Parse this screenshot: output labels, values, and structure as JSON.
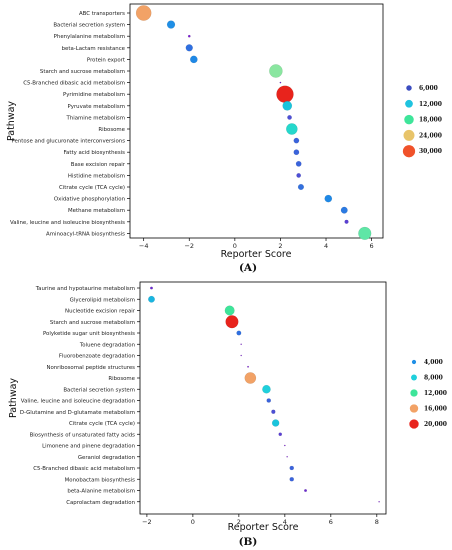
{
  "chart_data": [
    {
      "type": "scatter",
      "panel_label": "(A)",
      "xlabel": "Reporter Score",
      "ylabel": "Pathway",
      "xlim": [
        -4.6,
        6.5
      ],
      "xticks": [
        -4,
        -2,
        0,
        2,
        4,
        6
      ],
      "size_legend": {
        "values": [
          6000,
          12000,
          18000,
          24000,
          30000
        ],
        "labels": [
          "6,000",
          "12,000",
          "18,000",
          "24,000",
          "30,000"
        ],
        "colors": [
          "#3b4cc0",
          "#1fc3df",
          "#3ee59a",
          "#e8c46a",
          "#f0522a"
        ]
      },
      "points": [
        {
          "pathway": "ABC transporters",
          "x": -4.0,
          "size": 24000,
          "color": "#f2a266"
        },
        {
          "pathway": "Bacterial secretion system",
          "x": -2.8,
          "size": 6500,
          "color": "#1f8fe6"
        },
        {
          "pathway": "Phenylalanine metabolism",
          "x": -2.0,
          "size": 600,
          "color": "#7a1fcf"
        },
        {
          "pathway": "beta-Lactam resistance",
          "x": -2.0,
          "size": 5000,
          "color": "#2f6fe0"
        },
        {
          "pathway": "Protein export",
          "x": -1.8,
          "size": 5500,
          "color": "#1e88e6"
        },
        {
          "pathway": "Starch and sucrose metabolism",
          "x": 1.8,
          "size": 18000,
          "color": "#8ae6a0"
        },
        {
          "pathway": "C5-Branched dibasic acid metabolism",
          "x": 2.0,
          "size": 200,
          "color": "#6a2ad0"
        },
        {
          "pathway": "Pyrimidine metabolism",
          "x": 2.2,
          "size": 30000,
          "color": "#e8231c"
        },
        {
          "pathway": "Pyruvate metabolism",
          "x": 2.3,
          "size": 9000,
          "color": "#19c4dc"
        },
        {
          "pathway": "Thiamine metabolism",
          "x": 2.4,
          "size": 2000,
          "color": "#4d4fd6"
        },
        {
          "pathway": "Ribosome",
          "x": 2.5,
          "size": 13000,
          "color": "#25d8cc"
        },
        {
          "pathway": "Pentose and glucuronate interconversions",
          "x": 2.7,
          "size": 3000,
          "color": "#3a63dc"
        },
        {
          "pathway": "Fatty acid biosynthesis",
          "x": 2.7,
          "size": 3000,
          "color": "#3a63dc"
        },
        {
          "pathway": "Base excision repair",
          "x": 2.8,
          "size": 3000,
          "color": "#3a63dc"
        },
        {
          "pathway": "Histidine metabolism",
          "x": 2.8,
          "size": 2000,
          "color": "#4d4fd6"
        },
        {
          "pathway": "Citrate cycle (TCA cycle)",
          "x": 2.9,
          "size": 3500,
          "color": "#3370de"
        },
        {
          "pathway": "Oxidative phosphorylation",
          "x": 4.1,
          "size": 5500,
          "color": "#1e88e6"
        },
        {
          "pathway": "Methane metabolism",
          "x": 4.8,
          "size": 4500,
          "color": "#2b7ae2"
        },
        {
          "pathway": "Valine, leucine and isoleucine biosynthesis",
          "x": 4.9,
          "size": 1500,
          "color": "#5a3fd4"
        },
        {
          "pathway": "Aminoacyl-tRNA biosynthesis",
          "x": 5.7,
          "size": 17000,
          "color": "#5fe6a6"
        }
      ]
    },
    {
      "type": "scatter",
      "panel_label": "(B)",
      "xlabel": "Reporter Score",
      "ylabel": "Pathway",
      "xlim": [
        -2.3,
        8.4
      ],
      "xticks": [
        -2,
        0,
        2,
        4,
        6,
        8
      ],
      "size_legend": {
        "values": [
          4000,
          8000,
          12000,
          16000,
          20000
        ],
        "labels": [
          "4,000",
          "8,000",
          "12,000",
          "16,000",
          "20,000"
        ],
        "colors": [
          "#1f8fe6",
          "#1fd0dc",
          "#3ee59a",
          "#f2a266",
          "#e8231c"
        ]
      },
      "points": [
        {
          "pathway": "Taurine and hypotaurine metabolism",
          "x": -1.8,
          "size": 800,
          "color": "#6a2ad0"
        },
        {
          "pathway": "Glycerolipid metabolism",
          "x": -1.8,
          "size": 5000,
          "color": "#19b5e0"
        },
        {
          "pathway": "Nucleotide excision repair",
          "x": 1.6,
          "size": 11000,
          "color": "#3ee59a"
        },
        {
          "pathway": "Starch and sucrose metabolism",
          "x": 1.7,
          "size": 19000,
          "color": "#e8231c"
        },
        {
          "pathway": "Polyketide sugar unit biosynthesis",
          "x": 2.0,
          "size": 2500,
          "color": "#2f6fe0"
        },
        {
          "pathway": "Toluene degradation",
          "x": 2.1,
          "size": 50,
          "color": "#7a1fcf"
        },
        {
          "pathway": "Fluorobenzoate degradation",
          "x": 2.1,
          "size": 50,
          "color": "#7a1fcf"
        },
        {
          "pathway": "Nonribosomal peptide structures",
          "x": 2.4,
          "size": 300,
          "color": "#7a1fcf"
        },
        {
          "pathway": "Ribosome",
          "x": 2.5,
          "size": 15000,
          "color": "#f2a266"
        },
        {
          "pathway": "Bacterial secretion system",
          "x": 3.2,
          "size": 8000,
          "color": "#1fd0dc"
        },
        {
          "pathway": "Valine, leucine and isoleucine degradation",
          "x": 3.3,
          "size": 2000,
          "color": "#3a63dc"
        },
        {
          "pathway": "D-Glutamine and D-glutamate metabolism",
          "x": 3.5,
          "size": 1800,
          "color": "#4d4fd6"
        },
        {
          "pathway": "Citrate cycle (TCA cycle)",
          "x": 3.6,
          "size": 6000,
          "color": "#19c4dc"
        },
        {
          "pathway": "Biosynthesis of unsaturated fatty acids",
          "x": 3.8,
          "size": 1200,
          "color": "#5a3fd4"
        },
        {
          "pathway": "Limonene and pinene degradation",
          "x": 4.0,
          "size": 200,
          "color": "#7a1fcf"
        },
        {
          "pathway": "Geraniol degradation",
          "x": 4.1,
          "size": 100,
          "color": "#7a1fcf"
        },
        {
          "pathway": "C5-Branched dibasic acid metabolism",
          "x": 4.3,
          "size": 2000,
          "color": "#3a63dc"
        },
        {
          "pathway": "Monobactam biosynthesis",
          "x": 4.3,
          "size": 2000,
          "color": "#3a63dc"
        },
        {
          "pathway": "beta-Alanine metabolism",
          "x": 4.9,
          "size": 800,
          "color": "#6a2ad0"
        },
        {
          "pathway": "Caprolactam degradation",
          "x": 8.1,
          "size": 50,
          "color": "#7a1fcf"
        }
      ]
    }
  ]
}
